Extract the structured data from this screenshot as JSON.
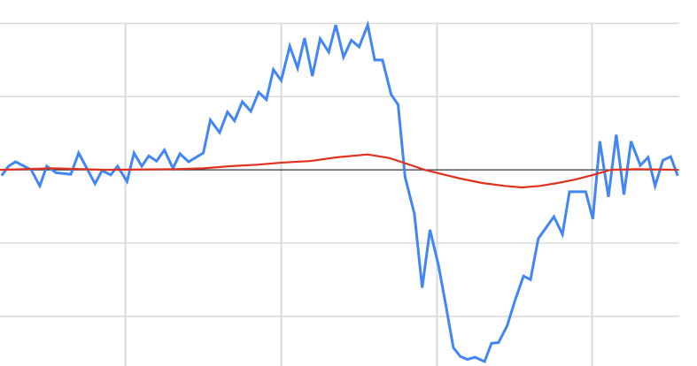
{
  "chart_data": {
    "type": "line",
    "title": "",
    "xlabel": "",
    "ylabel": "",
    "xlim": [
      0,
      87.2
    ],
    "ylim": [
      -2.68,
      2.32
    ],
    "grid": true,
    "x_gridlines": [
      16.1,
      36.1,
      56.1,
      76.0
    ],
    "y_gridlines": [
      -2,
      -1,
      1,
      2
    ],
    "baseline": 0,
    "colors": {
      "grid": "#d9d9d9",
      "baseline": "#333333",
      "series_1": "#4285f4",
      "series_2": "#e0311d"
    },
    "series": [
      {
        "points": [
          [
            0.2,
            -0.08
          ],
          [
            1.1,
            0.05
          ],
          [
            2.0,
            0.11
          ],
          [
            4.0,
            0
          ],
          [
            5.1,
            -0.22
          ],
          [
            6.0,
            0.05
          ],
          [
            7.2,
            -0.04
          ],
          [
            9.1,
            -0.06
          ],
          [
            10.1,
            0.23
          ],
          [
            12.2,
            -0.19
          ],
          [
            13.1,
            -0.01
          ],
          [
            14.2,
            -0.07
          ],
          [
            15.1,
            0.05
          ],
          [
            16.3,
            -0.16
          ],
          [
            17.2,
            0.23
          ],
          [
            18.2,
            0.05
          ],
          [
            19.1,
            0.19
          ],
          [
            20.1,
            0.12
          ],
          [
            21.1,
            0.27
          ],
          [
            22.2,
            0.02
          ],
          [
            23.1,
            0.22
          ],
          [
            24.2,
            0.11
          ],
          [
            26.1,
            0.23
          ],
          [
            27.0,
            0.68
          ],
          [
            28.2,
            0.51
          ],
          [
            29.2,
            0.79
          ],
          [
            30.1,
            0.67
          ],
          [
            31.1,
            0.93
          ],
          [
            32.2,
            0.8
          ],
          [
            33.2,
            1.06
          ],
          [
            34.2,
            0.96
          ],
          [
            35.1,
            1.37
          ],
          [
            36.1,
            1.22
          ],
          [
            37.2,
            1.69
          ],
          [
            38.2,
            1.39
          ],
          [
            39.1,
            1.8
          ],
          [
            40.1,
            1.28
          ],
          [
            41.1,
            1.79
          ],
          [
            42.2,
            1.61
          ],
          [
            43.1,
            1.98
          ],
          [
            44.1,
            1.54
          ],
          [
            45.1,
            1.77
          ],
          [
            46.1,
            1.68
          ],
          [
            47.2,
            1.98
          ],
          [
            48.1,
            1.5
          ],
          [
            49.1,
            1.5
          ],
          [
            50.2,
            1.03
          ],
          [
            51.1,
            0.89
          ],
          [
            52.0,
            -0.1
          ],
          [
            53.2,
            -0.6
          ],
          [
            54.2,
            -1.61
          ],
          [
            55.2,
            -0.82
          ],
          [
            56.3,
            -1.31
          ],
          [
            57.2,
            -1.83
          ],
          [
            58.2,
            -2.43
          ],
          [
            59.1,
            -2.55
          ],
          [
            60.0,
            -2.59
          ],
          [
            61.0,
            -2.56
          ],
          [
            62.2,
            -2.62
          ],
          [
            63.1,
            -2.37
          ],
          [
            64.0,
            -2.36
          ],
          [
            65.1,
            -2.13
          ],
          [
            66.1,
            -1.79
          ],
          [
            67.2,
            -1.45
          ],
          [
            68.1,
            -1.5
          ],
          [
            69.1,
            -0.94
          ],
          [
            70.1,
            -0.79
          ],
          [
            71.1,
            -0.64
          ],
          [
            72.2,
            -0.88
          ],
          [
            73.1,
            -0.3
          ],
          [
            75.2,
            -0.3
          ],
          [
            76.1,
            -0.67
          ],
          [
            77.0,
            0.39
          ],
          [
            78.1,
            -0.37
          ],
          [
            79.1,
            0.48
          ],
          [
            80.1,
            -0.34
          ],
          [
            81.0,
            0.39
          ],
          [
            82.2,
            0.06
          ],
          [
            83.2,
            0.17
          ],
          [
            84.1,
            -0.22
          ],
          [
            85.1,
            0.13
          ],
          [
            86.1,
            0.18
          ],
          [
            87.0,
            -0.08
          ]
        ]
      },
      {
        "points": [
          [
            0,
            0
          ],
          [
            6.8,
            0.02
          ],
          [
            13.6,
            0
          ],
          [
            22.7,
            0.01
          ],
          [
            26.1,
            0.02
          ],
          [
            29.5,
            0.05
          ],
          [
            33.0,
            0.07
          ],
          [
            36.4,
            0.1
          ],
          [
            39.8,
            0.12
          ],
          [
            43.2,
            0.17
          ],
          [
            47.2,
            0.21
          ],
          [
            50.0,
            0.16
          ],
          [
            52.3,
            0.08
          ],
          [
            54.5,
            0
          ],
          [
            56.8,
            -0.06
          ],
          [
            59.1,
            -0.12
          ],
          [
            61.9,
            -0.18
          ],
          [
            64.8,
            -0.22
          ],
          [
            67.0,
            -0.24
          ],
          [
            69.3,
            -0.22
          ],
          [
            71.6,
            -0.18
          ],
          [
            73.9,
            -0.13
          ],
          [
            76.1,
            -0.07
          ],
          [
            78.4,
            0
          ],
          [
            81.8,
            0.01
          ],
          [
            87.0,
            0
          ]
        ]
      }
    ]
  }
}
